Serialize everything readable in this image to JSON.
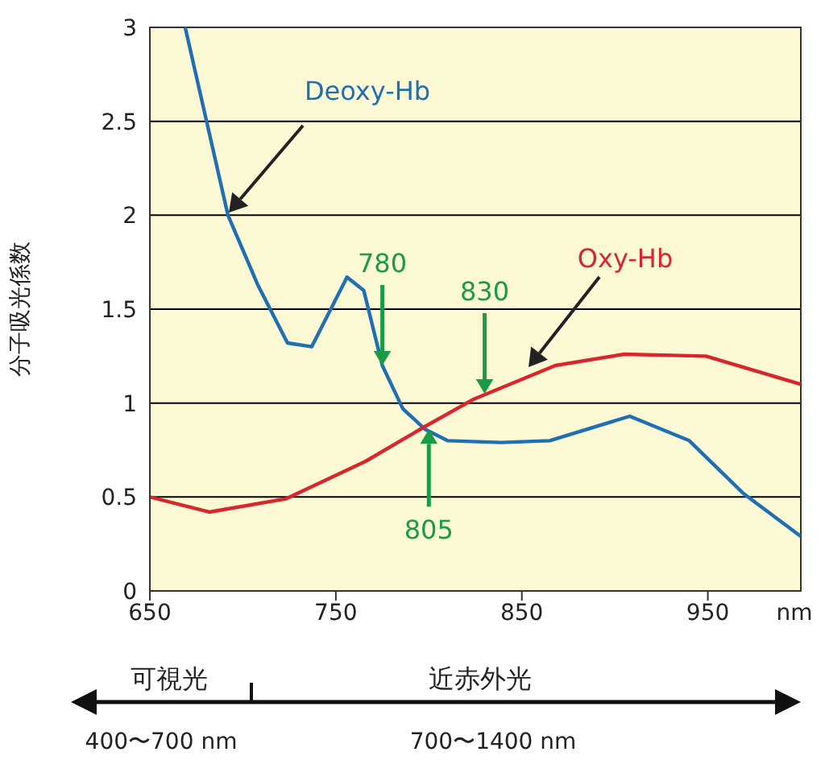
{
  "chart_data": {
    "type": "line",
    "ylabel": "分子吸光係数",
    "xlabel": "nm",
    "xlim": [
      650,
      1000
    ],
    "xticks": [
      650,
      750,
      850,
      950
    ],
    "ylim": [
      0,
      3
    ],
    "yticks": [
      0,
      0.5,
      1,
      1.5,
      2,
      2.5,
      3
    ],
    "grid": "y",
    "legend": false,
    "marker": "none",
    "line_style": "solid",
    "series": [
      {
        "name": "Deoxy-Hb",
        "color": "#1f6fb5",
        "x": [
          669,
          692,
          708,
          724,
          737,
          756,
          765,
          775,
          786,
          798,
          810,
          839,
          865,
          908,
          940,
          969,
          1000
        ],
        "values": [
          3.0,
          2.0,
          1.63,
          1.32,
          1.3,
          1.67,
          1.6,
          1.2,
          0.97,
          0.86,
          0.8,
          0.79,
          0.8,
          0.93,
          0.8,
          0.52,
          0.29
        ]
      },
      {
        "name": "Oxy-Hb",
        "color": "#d7262e",
        "x": [
          650,
          682,
          723,
          766,
          797,
          824,
          868,
          905,
          949,
          1000
        ],
        "values": [
          0.5,
          0.42,
          0.49,
          0.69,
          0.87,
          1.02,
          1.2,
          1.26,
          1.25,
          1.1
        ]
      }
    ],
    "annotations": [
      {
        "text": "780",
        "x": 775,
        "y": 1.2
      },
      {
        "text": "830",
        "x": 830,
        "y": 1.05
      },
      {
        "text": "805",
        "x": 800,
        "y": 0.86
      },
      "可視光",
      "近赤外光",
      "400〜700 nm",
      "700〜1400 nm"
    ]
  }
}
